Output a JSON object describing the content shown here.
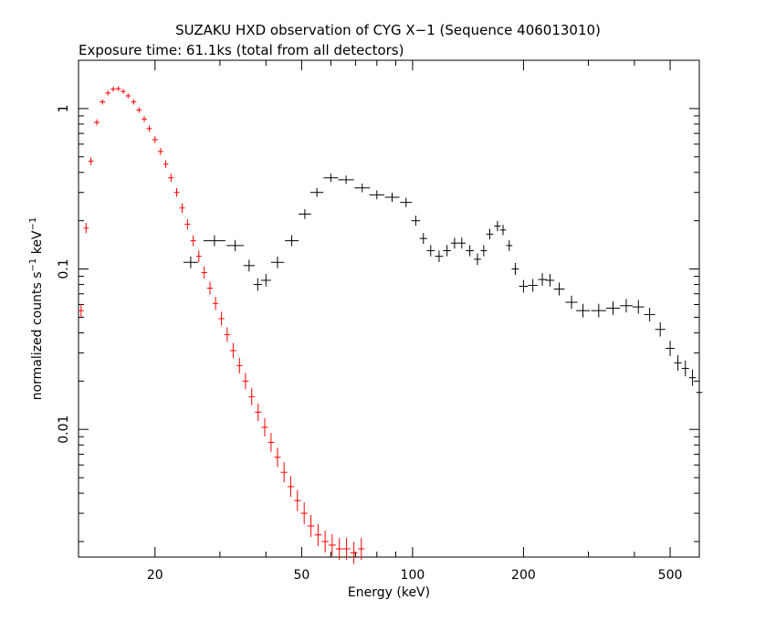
{
  "chart_data": {
    "type": "scatter",
    "title": "SUZAKU HXD observation of CYG X−1 (Sequence 406013010)",
    "subtitle": "Exposure time: 61.1ks (total from all detectors)",
    "xlabel": "Energy (keV)",
    "ylabel": {
      "prefix": "normalized counts s",
      "exp1": "−1",
      "middle": " keV",
      "exp2": "−1"
    },
    "xscale": "log",
    "yscale": "log",
    "xlim": [
      12.4,
      600
    ],
    "ylim": [
      0.0016,
      2.0
    ],
    "xticks": [
      20,
      50,
      100,
      200,
      500
    ],
    "xtick_labels": [
      "20",
      "50",
      "100",
      "200",
      "500"
    ],
    "yticks": [
      0.01,
      0.1,
      1
    ],
    "ytick_labels": [
      "0.01",
      "0.1",
      "1"
    ],
    "grid": false,
    "series": [
      {
        "color": "#ff0000",
        "points": [
          [
            12.6,
            0.055
          ],
          [
            13.0,
            0.18
          ],
          [
            13.4,
            0.47
          ],
          [
            13.9,
            0.82
          ],
          [
            14.4,
            1.1
          ],
          [
            14.9,
            1.25
          ],
          [
            15.4,
            1.32
          ],
          [
            15.9,
            1.33
          ],
          [
            16.4,
            1.28
          ],
          [
            16.9,
            1.2
          ],
          [
            17.5,
            1.1
          ],
          [
            18.1,
            0.98
          ],
          [
            18.7,
            0.86
          ],
          [
            19.3,
            0.75
          ],
          [
            20.0,
            0.64
          ],
          [
            20.7,
            0.54
          ],
          [
            21.4,
            0.45
          ],
          [
            22.1,
            0.37
          ],
          [
            22.9,
            0.3
          ],
          [
            23.7,
            0.24
          ],
          [
            24.5,
            0.19
          ],
          [
            25.4,
            0.15
          ],
          [
            26.3,
            0.12
          ],
          [
            27.2,
            0.095
          ],
          [
            28.2,
            0.076
          ],
          [
            29.2,
            0.061
          ],
          [
            30.3,
            0.049
          ],
          [
            31.4,
            0.039
          ],
          [
            32.6,
            0.031
          ],
          [
            33.9,
            0.025
          ],
          [
            35.2,
            0.02
          ],
          [
            36.6,
            0.016
          ],
          [
            38.1,
            0.0128
          ],
          [
            39.7,
            0.0103
          ],
          [
            41.3,
            0.0083
          ],
          [
            43.0,
            0.0067
          ],
          [
            44.8,
            0.0054
          ],
          [
            46.7,
            0.0044
          ],
          [
            48.7,
            0.0036
          ],
          [
            50.8,
            0.003
          ],
          [
            53.0,
            0.0025
          ],
          [
            55.4,
            0.0022
          ],
          [
            57.9,
            0.002
          ],
          [
            60.5,
            0.0019
          ],
          [
            63.3,
            0.0018
          ],
          [
            66.2,
            0.0018
          ],
          [
            69.3,
            0.0017
          ],
          [
            72.6,
            0.0018
          ]
        ]
      },
      {
        "color": "#000000",
        "points": [
          [
            25,
            0.11
          ],
          [
            29,
            0.15
          ],
          [
            33,
            0.14
          ],
          [
            36,
            0.105
          ],
          [
            38,
            0.08
          ],
          [
            40,
            0.085
          ],
          [
            43,
            0.11
          ],
          [
            47,
            0.15
          ],
          [
            51,
            0.22
          ],
          [
            55,
            0.3
          ],
          [
            60,
            0.37
          ],
          [
            66,
            0.36
          ],
          [
            73,
            0.32
          ],
          [
            80,
            0.29
          ],
          [
            88,
            0.28
          ],
          [
            96,
            0.26
          ],
          [
            102,
            0.2
          ],
          [
            107,
            0.155
          ],
          [
            112,
            0.13
          ],
          [
            118,
            0.12
          ],
          [
            124,
            0.13
          ],
          [
            130,
            0.145
          ],
          [
            136,
            0.145
          ],
          [
            143,
            0.13
          ],
          [
            150,
            0.115
          ],
          [
            156,
            0.13
          ],
          [
            162,
            0.165
          ],
          [
            170,
            0.185
          ],
          [
            176,
            0.175
          ],
          [
            183,
            0.14
          ],
          [
            190,
            0.1
          ],
          [
            200,
            0.078
          ],
          [
            212,
            0.079
          ],
          [
            225,
            0.086
          ],
          [
            236,
            0.085
          ],
          [
            250,
            0.075
          ],
          [
            270,
            0.062
          ],
          [
            290,
            0.055
          ],
          [
            320,
            0.055
          ],
          [
            350,
            0.057
          ],
          [
            380,
            0.059
          ],
          [
            410,
            0.058
          ],
          [
            440,
            0.052
          ],
          [
            470,
            0.042
          ],
          [
            500,
            0.032
          ],
          [
            525,
            0.026
          ],
          [
            550,
            0.024
          ],
          [
            575,
            0.021
          ],
          [
            600,
            0.017
          ]
        ]
      }
    ]
  }
}
